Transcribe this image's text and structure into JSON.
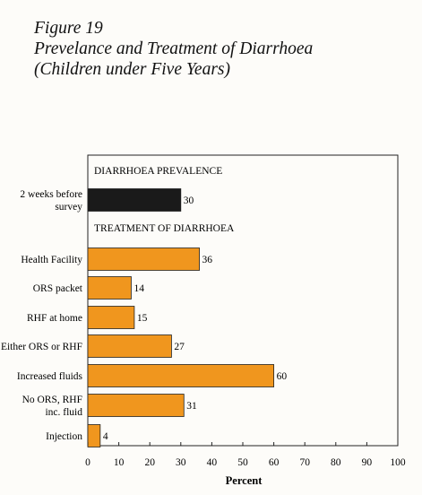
{
  "figure": {
    "label": "Figure 19",
    "title_line1": "Prevelance and Treatment of Diarrhoea",
    "title_line2": "(Children under Five Years)"
  },
  "chart_data": {
    "type": "bar",
    "orientation": "horizontal",
    "xlabel": "Percent",
    "xlim": [
      0,
      100
    ],
    "xticks": [
      0,
      10,
      20,
      30,
      40,
      50,
      60,
      70,
      80,
      90,
      100
    ],
    "grid": false,
    "sections": [
      {
        "heading": "DIARRHOEA PREVALENCE",
        "color": "#1a1a1a",
        "categories": [
          [
            "2 weeks before",
            "survey"
          ]
        ],
        "values": [
          30
        ]
      },
      {
        "heading": "TREATMENT OF DIARRHOEA",
        "color": "#f0961e",
        "categories": [
          [
            "Health Facility"
          ],
          [
            "ORS packet"
          ],
          [
            "RHF at home"
          ],
          [
            "Either ORS or RHF"
          ],
          [
            "Increased fluids"
          ],
          [
            "No ORS, RHF",
            "inc. fluid"
          ],
          [
            "Injection"
          ]
        ],
        "values": [
          36,
          14,
          15,
          27,
          60,
          31,
          4
        ]
      }
    ]
  }
}
